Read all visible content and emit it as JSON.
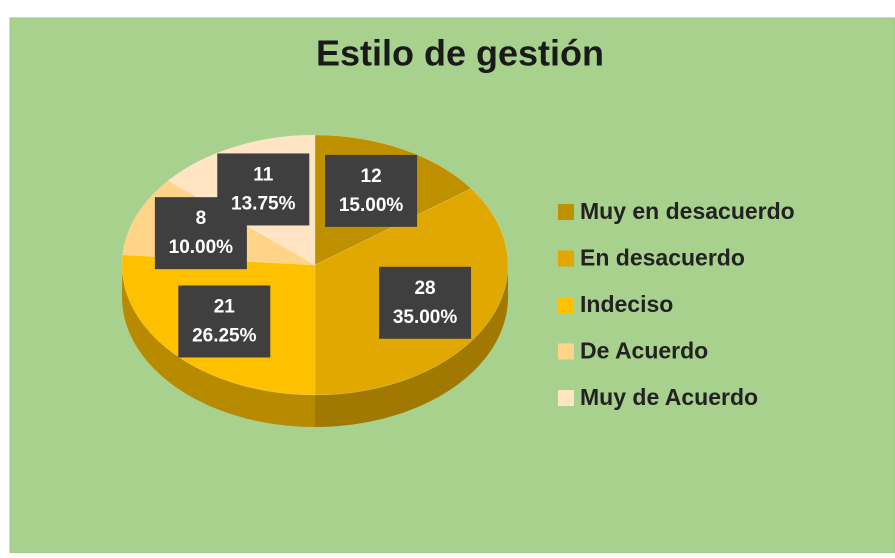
{
  "chart_data": {
    "type": "pie",
    "title": "Estilo de gestión",
    "categories": [
      "Muy en desacuerdo",
      "En desacuerdo",
      "Indeciso",
      "De Acuerdo",
      "Muy de Acuerdo"
    ],
    "values": [
      15,
      35,
      26.25,
      10,
      13.75
    ],
    "value_labels": [
      "15.00%",
      "35.00%",
      "26.25%",
      "10.00%",
      "13.75%"
    ],
    "counts": [
      12,
      28,
      21,
      8,
      11
    ],
    "colors": [
      "#bf9000",
      "#e0a800",
      "#ffc000",
      "#ffd488",
      "#ffe5c4"
    ],
    "legend": "right"
  }
}
